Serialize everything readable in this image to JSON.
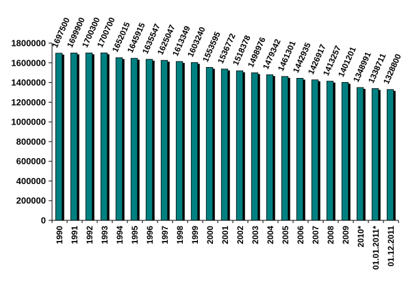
{
  "chart_data": {
    "type": "bar",
    "categories": [
      "1990",
      "1991",
      "1992",
      "1993",
      "1994",
      "1995",
      "1996",
      "1997",
      "1998",
      "1999",
      "2000",
      "2001",
      "2002",
      "2003",
      "2004",
      "2005",
      "2006",
      "2007",
      "2008",
      "2009",
      "2010*",
      "01.01.2011*",
      "01.12.2011"
    ],
    "values": [
      1697500,
      1699900,
      1700300,
      1700700,
      1652015,
      1645915,
      1635547,
      1625047,
      1613349,
      1603240,
      1553595,
      1536772,
      1518378,
      1498976,
      1479342,
      1461301,
      1442935,
      1426917,
      1413257,
      1401201,
      1348991,
      1338711,
      1328800
    ],
    "data_labels": [
      "1697500",
      "1699900",
      "1700300",
      "1700700",
      "1652015",
      "1645915",
      "1635547",
      "1625047",
      "1613349",
      "1603240",
      "1553595",
      "1536772",
      "1518378",
      "1498976",
      "1479342",
      "1461301",
      "1442935",
      "1426917",
      "1413257",
      "1401201",
      "1348991",
      "1338711",
      "1328800"
    ],
    "ylim": [
      0,
      1800000
    ],
    "yticks": [
      0,
      200000,
      400000,
      600000,
      800000,
      1000000,
      1200000,
      1400000,
      1600000,
      1800000
    ],
    "ytick_labels": [
      "0",
      "200000",
      "400000",
      "600000",
      "800000",
      "1000000",
      "1200000",
      "1400000",
      "1600000",
      "1800000"
    ],
    "grid": false,
    "legend": "none",
    "bar_color": "#008080",
    "bar_shadow_color": "#000000"
  }
}
